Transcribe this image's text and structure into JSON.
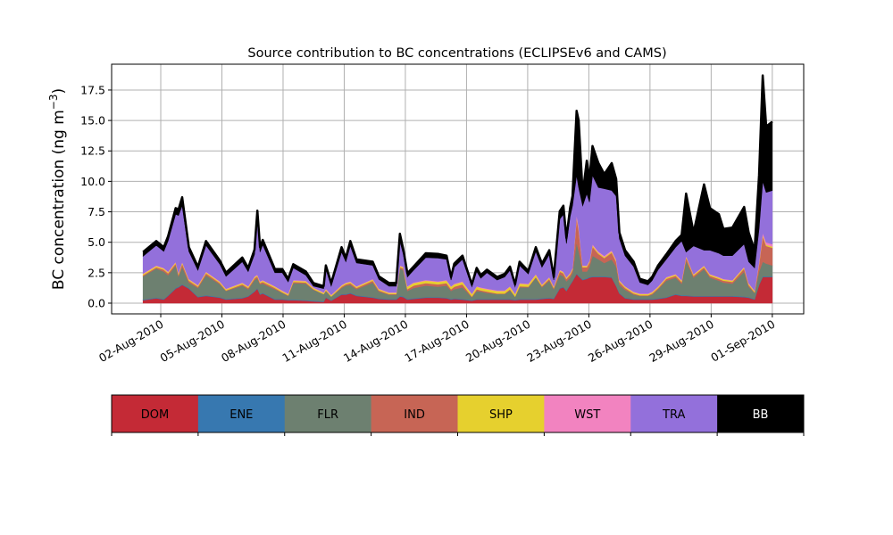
{
  "chart_data": {
    "type": "area",
    "stacked": true,
    "title": "Source contribution to BC concentrations (ECLIPSEv6 and CAMS)",
    "ylabel": "BC concentration (ng m",
    "ylabel_sup": "−3",
    "ylabel_close": ")",
    "xlabel": "",
    "ylim": [
      -0.88,
      19.62
    ],
    "xlim_days_since_2010-07-31": [
      -0.41,
      33.54
    ],
    "grid": true,
    "yticks": [
      0,
      2.5,
      5,
      7.5,
      10,
      12.5,
      15,
      17.5
    ],
    "ytick_labels": [
      "0.0",
      "2.5",
      "5.0",
      "7.5",
      "10.0",
      "12.5",
      "15.0",
      "17.5"
    ],
    "xticks_days_since_2010-07-31": [
      2,
      5,
      8,
      11,
      14,
      17,
      20,
      23,
      26,
      29,
      32
    ],
    "xtick_labels": [
      "02-Aug-2010",
      "05-Aug-2010",
      "08-Aug-2010",
      "11-Aug-2010",
      "14-Aug-2010",
      "17-Aug-2010",
      "20-Aug-2010",
      "23-Aug-2010",
      "26-Aug-2010",
      "29-Aug-2010",
      "01-Sep-2010"
    ],
    "x_days_since_2010-07-31": [
      1.13,
      1.78,
      2.15,
      2.36,
      2.73,
      2.87,
      3.05,
      3.38,
      3.82,
      4.22,
      4.9,
      5.2,
      6.0,
      6.29,
      6.6,
      6.74,
      6.87,
      7.0,
      7.6,
      7.96,
      8.25,
      8.5,
      9.12,
      9.49,
      9.99,
      10.1,
      10.36,
      10.87,
      11.08,
      11.3,
      11.6,
      12.4,
      12.7,
      13.2,
      13.55,
      13.73,
      13.9,
      14.1,
      14.4,
      15.0,
      15.6,
      16.02,
      16.24,
      16.4,
      16.8,
      17.26,
      17.5,
      17.7,
      18.0,
      18.5,
      18.87,
      19.13,
      19.38,
      19.6,
      20.03,
      20.4,
      20.7,
      21.06,
      21.28,
      21.57,
      21.75,
      21.9,
      22.08,
      22.2,
      22.4,
      22.5,
      22.7,
      22.9,
      23.03,
      23.18,
      23.47,
      23.76,
      24.12,
      24.34,
      24.5,
      24.78,
      25.2,
      25.5,
      25.9,
      26.1,
      26.4,
      26.8,
      27.26,
      27.55,
      27.77,
      28.14,
      28.65,
      28.94,
      29.38,
      29.6,
      30.04,
      30.62,
      30.84,
      31.13,
      31.35,
      31.53,
      31.7,
      32.0
    ],
    "series": [
      {
        "name": "DOM",
        "color": "#c42a36",
        "values": [
          0.25,
          0.4,
          0.3,
          0.6,
          1.2,
          1.3,
          1.5,
          1.2,
          0.5,
          0.6,
          0.45,
          0.3,
          0.4,
          0.55,
          0.95,
          1.2,
          0.7,
          0.8,
          0.3,
          0.3,
          0.25,
          0.25,
          0.2,
          0.15,
          0.1,
          0.45,
          0.2,
          0.7,
          0.7,
          0.8,
          0.6,
          0.45,
          0.35,
          0.3,
          0.3,
          0.55,
          0.5,
          0.3,
          0.35,
          0.45,
          0.45,
          0.4,
          0.3,
          0.35,
          0.3,
          0.2,
          0.3,
          0.3,
          0.3,
          0.3,
          0.3,
          0.3,
          0.25,
          0.3,
          0.3,
          0.3,
          0.35,
          0.4,
          0.35,
          1.2,
          1.3,
          1.0,
          1.5,
          1.8,
          2.4,
          2.2,
          1.9,
          2.0,
          2.1,
          2.15,
          2.15,
          2.15,
          2.1,
          1.4,
          0.8,
          0.4,
          0.3,
          0.3,
          0.3,
          0.3,
          0.35,
          0.45,
          0.7,
          0.6,
          0.6,
          0.55,
          0.55,
          0.55,
          0.55,
          0.55,
          0.55,
          0.5,
          0.45,
          0.3,
          1.5,
          2.15,
          2.15,
          2.15
        ]
      },
      {
        "name": "ENE",
        "color": "#3778b0",
        "values": [
          0.05,
          0.05,
          0.05,
          0.05,
          0.05,
          0.05,
          0.05,
          0.05,
          0.05,
          0.05,
          0.05,
          0.05,
          0.05,
          0.05,
          0.05,
          0.05,
          0.05,
          0.05,
          0.05,
          0.05,
          0.05,
          0.05,
          0.05,
          0.05,
          0.05,
          0.05,
          0.05,
          0.05,
          0.05,
          0.05,
          0.05,
          0.05,
          0.05,
          0.05,
          0.05,
          0.05,
          0.05,
          0.05,
          0.05,
          0.05,
          0.05,
          0.05,
          0.05,
          0.05,
          0.05,
          0.05,
          0.05,
          0.05,
          0.05,
          0.05,
          0.05,
          0.05,
          0.05,
          0.05,
          0.05,
          0.05,
          0.05,
          0.05,
          0.05,
          0.05,
          0.05,
          0.05,
          0.05,
          0.05,
          0.05,
          0.05,
          0.05,
          0.05,
          0.05,
          0.05,
          0.05,
          0.05,
          0.05,
          0.05,
          0.05,
          0.05,
          0.05,
          0.05,
          0.05,
          0.05,
          0.05,
          0.05,
          0.05,
          0.05,
          0.05,
          0.05,
          0.05,
          0.05,
          0.05,
          0.05,
          0.05,
          0.05,
          0.05,
          0.05,
          0.05,
          0.05,
          0.05,
          0.05
        ]
      },
      {
        "name": "FLR",
        "color": "#6d8070",
        "values": [
          1.9,
          2.4,
          2.25,
          1.65,
          1.85,
          0.85,
          1.45,
          0.45,
          0.7,
          1.65,
          1.05,
          0.65,
          1.0,
          0.55,
          0.9,
          0.8,
          0.8,
          0.75,
          0.8,
          0.5,
          0.3,
          1.35,
          1.35,
          0.9,
          0.6,
          0.5,
          0.3,
          0.5,
          0.7,
          0.65,
          0.5,
          1.2,
          0.55,
          0.35,
          0.35,
          2.25,
          2.15,
          0.65,
          0.85,
          0.95,
          0.85,
          1.0,
          0.65,
          0.75,
          0.95,
          0.25,
          0.65,
          0.6,
          0.5,
          0.4,
          0.4,
          0.7,
          0.25,
          0.95,
          0.95,
          1.75,
          0.9,
          1.4,
          0.75,
          1.1,
          0.85,
          0.75,
          0.55,
          0.65,
          2.55,
          2.05,
          0.65,
          0.55,
          0.85,
          1.7,
          1.4,
          1.1,
          1.45,
          1.55,
          0.65,
          0.65,
          0.35,
          0.25,
          0.25,
          0.35,
          0.75,
          1.35,
          1.35,
          0.95,
          2.85,
          1.5,
          2.2,
          1.5,
          1.25,
          1.1,
          1.0,
          2.05,
          0.85,
          0.5,
          1.05,
          1.2,
          1.05,
          0.9
        ]
      },
      {
        "name": "IND",
        "color": "#c76555",
        "values": [
          0.1,
          0.1,
          0.15,
          0.15,
          0.15,
          0.15,
          0.25,
          0.15,
          0.1,
          0.15,
          0.1,
          0.05,
          0.1,
          0.1,
          0.15,
          0.15,
          0.1,
          0.15,
          0.1,
          0.05,
          0.05,
          0.1,
          0.1,
          0.05,
          0.0,
          0.05,
          0.0,
          0.1,
          0.1,
          0.15,
          0.1,
          0.15,
          0.1,
          0.05,
          0.05,
          0.1,
          0.15,
          0.15,
          0.2,
          0.2,
          0.2,
          0.2,
          0.15,
          0.2,
          0.25,
          0.05,
          0.15,
          0.1,
          0.1,
          0.05,
          0.05,
          0.1,
          0.0,
          0.1,
          0.05,
          0.05,
          0.1,
          0.15,
          0.1,
          0.25,
          0.25,
          0.2,
          0.25,
          0.25,
          2.0,
          1.7,
          0.35,
          0.35,
          0.35,
          0.75,
          0.45,
          0.4,
          0.55,
          0.4,
          0.25,
          0.15,
          0.1,
          0.05,
          0.05,
          0.1,
          0.1,
          0.15,
          0.15,
          0.15,
          0.25,
          0.15,
          0.15,
          0.15,
          0.15,
          0.15,
          0.15,
          0.25,
          0.15,
          0.05,
          0.6,
          2.1,
          1.45,
          1.45
        ]
      },
      {
        "name": "SHP",
        "color": "#e6d02e",
        "values": [
          0.1,
          0.1,
          0.1,
          0.1,
          0.1,
          0.1,
          0.1,
          0.1,
          0.1,
          0.1,
          0.1,
          0.1,
          0.1,
          0.1,
          0.1,
          0.1,
          0.1,
          0.1,
          0.1,
          0.1,
          0.1,
          0.1,
          0.1,
          0.1,
          0.1,
          0.1,
          0.1,
          0.1,
          0.1,
          0.1,
          0.1,
          0.1,
          0.1,
          0.1,
          0.1,
          0.1,
          0.1,
          0.2,
          0.2,
          0.2,
          0.2,
          0.2,
          0.2,
          0.2,
          0.2,
          0.2,
          0.2,
          0.2,
          0.2,
          0.2,
          0.2,
          0.2,
          0.2,
          0.2,
          0.2,
          0.2,
          0.1,
          0.1,
          0.1,
          0.1,
          0.1,
          0.1,
          0.1,
          0.1,
          0.1,
          0.1,
          0.1,
          0.1,
          0.1,
          0.1,
          0.1,
          0.1,
          0.1,
          0.1,
          0.1,
          0.1,
          0.1,
          0.1,
          0.1,
          0.1,
          0.1,
          0.1,
          0.1,
          0.1,
          0.1,
          0.1,
          0.1,
          0.1,
          0.1,
          0.1,
          0.1,
          0.1,
          0.1,
          0.1,
          0.1,
          0.1,
          0.1,
          0.1
        ]
      },
      {
        "name": "WST",
        "color": "#f283c0",
        "values": [
          0.05,
          0.05,
          0.05,
          0.05,
          0.05,
          0.05,
          0.05,
          0.05,
          0.05,
          0.05,
          0.05,
          0.05,
          0.05,
          0.05,
          0.05,
          0.05,
          0.05,
          0.05,
          0.05,
          0.05,
          0.05,
          0.05,
          0.05,
          0.05,
          0.05,
          0.05,
          0.05,
          0.05,
          0.05,
          0.05,
          0.05,
          0.05,
          0.05,
          0.05,
          0.05,
          0.05,
          0.05,
          0.05,
          0.05,
          0.05,
          0.05,
          0.05,
          0.05,
          0.05,
          0.05,
          0.05,
          0.05,
          0.05,
          0.05,
          0.05,
          0.05,
          0.05,
          0.05,
          0.05,
          0.05,
          0.05,
          0.05,
          0.05,
          0.05,
          0.05,
          0.05,
          0.05,
          0.05,
          0.05,
          0.2,
          0.2,
          0.05,
          0.05,
          0.05,
          0.1,
          0.1,
          0.1,
          0.1,
          0.1,
          0.05,
          0.05,
          0.05,
          0.05,
          0.05,
          0.05,
          0.05,
          0.05,
          0.05,
          0.05,
          0.05,
          0.05,
          0.05,
          0.05,
          0.05,
          0.05,
          0.05,
          0.05,
          0.05,
          0.05,
          0.1,
          0.2,
          0.2,
          0.2
        ]
      },
      {
        "name": "TRA",
        "color": "#9370db",
        "values": [
          1.4,
          1.65,
          1.35,
          2.5,
          3.9,
          4.7,
          4.6,
          2.25,
          1.2,
          2.15,
          1.4,
          1.0,
          1.7,
          1.2,
          1.8,
          4.55,
          2.4,
          2.9,
          1.1,
          1.45,
          0.95,
          1.0,
          0.45,
          0.1,
          0.3,
          1.6,
          0.7,
          2.7,
          1.7,
          2.9,
          1.9,
          1.1,
          0.75,
          0.5,
          0.5,
          2.0,
          1.0,
          0.75,
          1.0,
          1.85,
          1.9,
          1.7,
          0.5,
          1.35,
          1.8,
          0.55,
          1.2,
          0.75,
          1.3,
          0.85,
          1.1,
          1.3,
          0.55,
          1.45,
          0.8,
          1.85,
          1.4,
          1.85,
          0.5,
          4.15,
          4.7,
          2.75,
          4.6,
          5.1,
          3.2,
          3.2,
          4.9,
          5.9,
          4.8,
          5.65,
          5.25,
          5.5,
          4.9,
          5.2,
          3.4,
          2.5,
          2.05,
          0.9,
          0.7,
          0.9,
          1.35,
          1.45,
          2.2,
          3.2,
          0.3,
          2.3,
          1.25,
          1.95,
          1.95,
          1.9,
          2.0,
          1.85,
          1.75,
          1.85,
          2.7,
          4.2,
          4.1,
          4.4
        ]
      },
      {
        "name": "BB",
        "color": "#000000",
        "values": [
          0.35,
          0.35,
          0.35,
          0.4,
          0.5,
          0.5,
          0.7,
          0.35,
          0.3,
          0.35,
          0.3,
          0.3,
          0.35,
          0.3,
          0.4,
          0.7,
          0.4,
          0.4,
          0.3,
          0.3,
          0.25,
          0.3,
          0.3,
          0.25,
          0.2,
          0.3,
          0.25,
          0.4,
          0.35,
          0.4,
          0.3,
          0.3,
          0.25,
          0.25,
          0.25,
          0.6,
          0.4,
          0.3,
          0.3,
          0.35,
          0.35,
          0.3,
          0.25,
          0.3,
          0.3,
          0.2,
          0.3,
          0.25,
          0.25,
          0.25,
          0.25,
          0.3,
          0.2,
          0.3,
          0.25,
          0.35,
          0.3,
          0.35,
          0.25,
          0.65,
          0.7,
          0.45,
          0.7,
          0.8,
          5.3,
          5.5,
          1.0,
          2.7,
          1.9,
          2.4,
          2.0,
          1.2,
          2.25,
          1.4,
          0.5,
          0.45,
          0.4,
          0.3,
          0.3,
          0.3,
          0.35,
          0.4,
          0.5,
          0.5,
          4.8,
          1.1,
          5.4,
          3.45,
          3.2,
          2.2,
          2.3,
          3.05,
          2.4,
          1.45,
          4.4,
          8.7,
          5.4,
          5.65
        ]
      }
    ],
    "legend": {
      "type": "colorbar",
      "placement": "bottom",
      "labels": [
        "DOM",
        "ENE",
        "FLR",
        "IND",
        "SHP",
        "WST",
        "TRA",
        "BB"
      ],
      "label_colors": [
        "#000000",
        "#000000",
        "#000000",
        "#000000",
        "#000000",
        "#000000",
        "#000000",
        "#ffffff"
      ]
    }
  }
}
